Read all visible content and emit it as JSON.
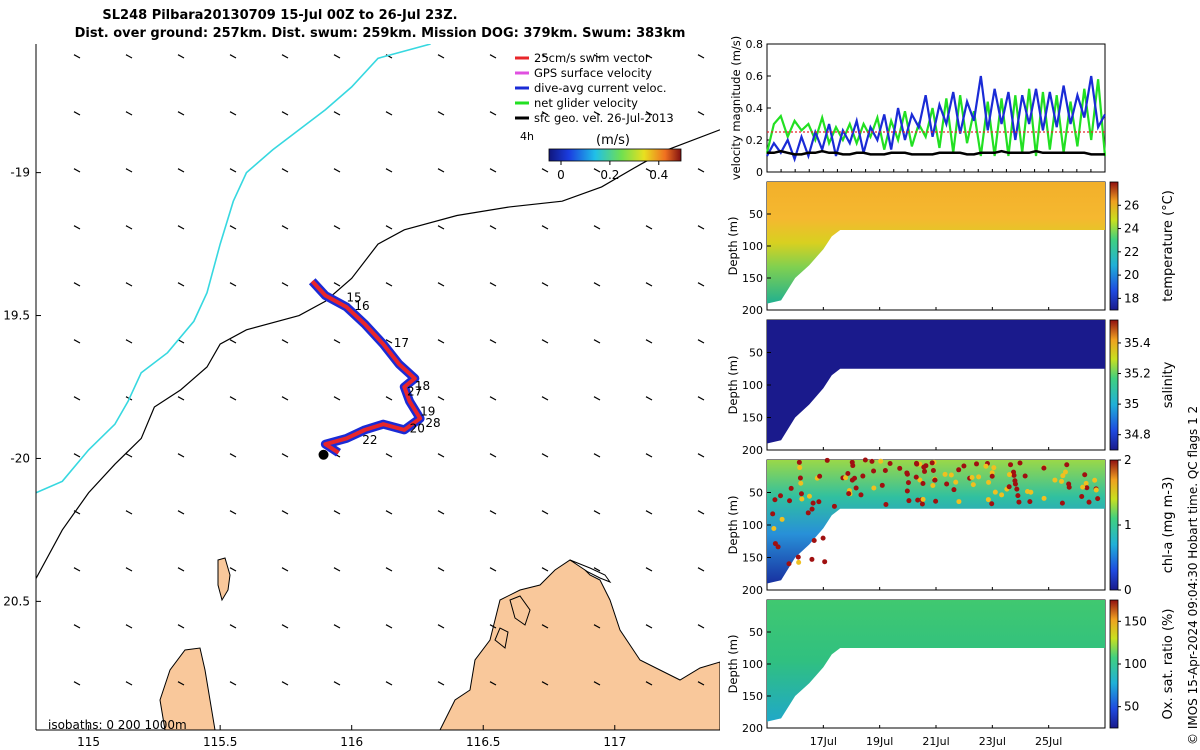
{
  "header": {
    "title_line1": "SL248 Pilbara20130709 15-Jul 00Z to 26-Jul 23Z.",
    "title_line2": "Dist. over ground: 257km. Dist. swum: 259km. Mission DOG: 379km. Swum: 383km"
  },
  "map": {
    "legend": [
      {
        "label": "25cm/s swim vector",
        "color": "#e8262a"
      },
      {
        "label": "GPS surface velocity",
        "color": "#e050e0"
      },
      {
        "label": "dive-avg current veloc.",
        "color": "#1a2bd6"
      },
      {
        "label": "net glider velocity",
        "color": "#22e022"
      },
      {
        "label": "sfc geo. vel. 26-Jul-2013",
        "color": "#000000"
      }
    ],
    "interval_label": "4h",
    "colorbar_unit": "(m/s)",
    "colorbar_ticks": [
      "0",
      "0.2",
      "0.4"
    ],
    "isobath_label": "isobaths: 0   200 1000m",
    "land_color": "#f9c89b",
    "day_labels": [
      {
        "text": "15",
        "lon": 115.98,
        "lat": -19.45
      },
      {
        "text": "16",
        "lon": 116.01,
        "lat": -19.48
      },
      {
        "text": "17",
        "lon": 116.16,
        "lat": -19.61
      },
      {
        "text": "18",
        "lon": 116.24,
        "lat": -19.76
      },
      {
        "text": "27",
        "lon": 116.21,
        "lat": -19.78
      },
      {
        "text": "19",
        "lon": 116.26,
        "lat": -19.85
      },
      {
        "text": "20",
        "lon": 116.22,
        "lat": -19.91
      },
      {
        "text": "28",
        "lon": 116.28,
        "lat": -19.89
      },
      {
        "text": "22",
        "lon": 116.04,
        "lat": -19.95
      }
    ]
  },
  "chart_data": [
    {
      "type": "line",
      "name": "map",
      "xlim": [
        114.8,
        117.4
      ],
      "ylim": [
        -20.95,
        -18.55
      ],
      "xticks": [
        115,
        115.5,
        116,
        116.5,
        117
      ],
      "xtick_labels": [
        "115",
        "115.5",
        "116",
        "116.5",
        "117"
      ],
      "yticks": [
        -19,
        -19.5,
        -20,
        -20.5
      ],
      "ytick_labels": [
        "-19",
        "19.5",
        "-20",
        "20.5"
      ],
      "isobath_0": [
        [
          114.8,
          -20.12
        ],
        [
          114.9,
          -20.08
        ],
        [
          115.0,
          -19.97
        ],
        [
          115.1,
          -19.88
        ],
        [
          115.15,
          -19.8
        ],
        [
          115.2,
          -19.7
        ],
        [
          115.3,
          -19.63
        ],
        [
          115.4,
          -19.52
        ],
        [
          115.45,
          -19.42
        ],
        [
          115.5,
          -19.25
        ],
        [
          115.55,
          -19.1
        ],
        [
          115.6,
          -19.0
        ],
        [
          115.7,
          -18.92
        ],
        [
          115.8,
          -18.85
        ],
        [
          115.9,
          -18.78
        ],
        [
          116.0,
          -18.7
        ],
        [
          116.1,
          -18.6
        ],
        [
          116.3,
          -18.55
        ]
      ],
      "isobath_200": [
        [
          114.8,
          -20.42
        ],
        [
          114.9,
          -20.25
        ],
        [
          115.0,
          -20.12
        ],
        [
          115.1,
          -20.02
        ],
        [
          115.2,
          -19.93
        ],
        [
          115.25,
          -19.82
        ],
        [
          115.35,
          -19.76
        ],
        [
          115.45,
          -19.68
        ],
        [
          115.5,
          -19.6
        ],
        [
          115.6,
          -19.55
        ],
        [
          115.8,
          -19.5
        ],
        [
          115.9,
          -19.45
        ],
        [
          116.0,
          -19.37
        ],
        [
          116.1,
          -19.25
        ],
        [
          116.2,
          -19.2
        ],
        [
          116.4,
          -19.15
        ],
        [
          116.6,
          -19.12
        ],
        [
          116.8,
          -19.1
        ],
        [
          116.95,
          -19.05
        ],
        [
          117.1,
          -18.97
        ],
        [
          117.2,
          -18.92
        ],
        [
          117.4,
          -18.85
        ]
      ],
      "track": [
        [
          115.85,
          -19.38
        ],
        [
          115.9,
          -19.43
        ],
        [
          115.98,
          -19.47
        ],
        [
          116.05,
          -19.53
        ],
        [
          116.12,
          -19.6
        ],
        [
          116.18,
          -19.67
        ],
        [
          116.24,
          -19.72
        ],
        [
          116.2,
          -19.75
        ],
        [
          116.22,
          -19.8
        ],
        [
          116.26,
          -19.86
        ],
        [
          116.2,
          -19.9
        ],
        [
          116.12,
          -19.88
        ],
        [
          116.05,
          -19.9
        ],
        [
          115.98,
          -19.93
        ],
        [
          115.9,
          -19.95
        ],
        [
          115.95,
          -19.98
        ]
      ],
      "geo_vectors_direction_deg": 225,
      "legend_entries": [
        "25cm/s swim vector",
        "GPS surface velocity",
        "dive-avg current veloc.",
        "net glider velocity",
        "sfc geo. vel. 26-Jul-2013"
      ]
    },
    {
      "type": "line",
      "name": "velocity",
      "ylabel": "velocity magnitude (m/s)",
      "ylim": [
        0,
        0.8
      ],
      "yticks": [
        0,
        0.2,
        0.4,
        0.6,
        0.8
      ],
      "xlim": [
        15.0,
        27.0
      ],
      "series": [
        {
          "name": "net glider velocity",
          "color": "#22e022",
          "values": [
            0.12,
            0.3,
            0.35,
            0.22,
            0.32,
            0.26,
            0.3,
            0.2,
            0.34,
            0.18,
            0.28,
            0.2,
            0.3,
            0.18,
            0.3,
            0.22,
            0.34,
            0.14,
            0.32,
            0.2,
            0.38,
            0.16,
            0.3,
            0.22,
            0.4,
            0.15,
            0.46,
            0.12,
            0.48,
            0.18,
            0.38,
            0.1,
            0.44,
            0.1,
            0.46,
            0.1,
            0.48,
            0.12,
            0.52,
            0.1,
            0.5,
            0.14,
            0.48,
            0.12,
            0.44,
            0.16,
            0.52,
            0.2,
            0.58,
            0.1
          ]
        },
        {
          "name": "dive-avg current veloc.",
          "color": "#1a2bd6",
          "values": [
            0.1,
            0.18,
            0.12,
            0.2,
            0.08,
            0.22,
            0.1,
            0.25,
            0.14,
            0.3,
            0.1,
            0.26,
            0.18,
            0.32,
            0.12,
            0.28,
            0.2,
            0.36,
            0.14,
            0.4,
            0.2,
            0.36,
            0.28,
            0.48,
            0.22,
            0.42,
            0.3,
            0.5,
            0.24,
            0.44,
            0.32,
            0.6,
            0.26,
            0.52,
            0.3,
            0.5,
            0.2,
            0.48,
            0.3,
            0.52,
            0.26,
            0.5,
            0.28,
            0.54,
            0.3,
            0.48,
            0.34,
            0.6,
            0.28,
            0.36
          ]
        },
        {
          "name": "sfc geo. vel.",
          "color": "#000000",
          "values": [
            0.12,
            0.12,
            0.13,
            0.12,
            0.11,
            0.11,
            0.12,
            0.12,
            0.13,
            0.12,
            0.12,
            0.11,
            0.11,
            0.12,
            0.12,
            0.11,
            0.11,
            0.11,
            0.12,
            0.12,
            0.12,
            0.11,
            0.11,
            0.11,
            0.11,
            0.12,
            0.12,
            0.12,
            0.12,
            0.11,
            0.11,
            0.12,
            0.12,
            0.12,
            0.13,
            0.12,
            0.12,
            0.12,
            0.12,
            0.13,
            0.12,
            0.12,
            0.12,
            0.12,
            0.12,
            0.12,
            0.12,
            0.11,
            0.11,
            0.11
          ]
        },
        {
          "name": "25cm/s swim vector",
          "color": "#e8262a",
          "values": [
            0.25,
            0.25,
            0.25,
            0.25,
            0.25,
            0.25,
            0.25,
            0.25,
            0.25,
            0.25,
            0.25,
            0.25,
            0.25,
            0.25,
            0.25,
            0.25,
            0.25,
            0.25,
            0.25,
            0.25,
            0.25,
            0.25,
            0.25,
            0.25,
            0.25,
            0.25,
            0.25,
            0.25,
            0.25,
            0.25,
            0.25,
            0.25,
            0.25,
            0.25,
            0.25,
            0.25,
            0.25,
            0.25,
            0.25,
            0.25,
            0.25,
            0.25,
            0.25,
            0.25,
            0.25,
            0.25,
            0.25,
            0.25,
            0.25,
            0.25
          ]
        }
      ]
    },
    {
      "type": "heatmap",
      "name": "temperature",
      "ylabel": "Depth (m)",
      "clabel": "temperature (°C)",
      "yticks": [
        0,
        50,
        100,
        150,
        200
      ],
      "ylim": [
        0,
        200
      ],
      "clim": [
        17,
        28
      ],
      "cticks": [
        18,
        20,
        22,
        24,
        26
      ],
      "depth_profile_max_m": [
        [
          15.0,
          190
        ],
        [
          15.5,
          185
        ],
        [
          16.0,
          150
        ],
        [
          16.5,
          130
        ],
        [
          17.0,
          105
        ],
        [
          17.3,
          85
        ],
        [
          17.6,
          75
        ],
        [
          27.0,
          75
        ]
      ]
    },
    {
      "type": "heatmap",
      "name": "salinity",
      "ylabel": "Depth (m)",
      "clabel": "salinity",
      "yticks": [
        0,
        50,
        100,
        150,
        200
      ],
      "ylim": [
        0,
        200
      ],
      "clim": [
        34.7,
        35.55
      ],
      "cticks": [
        34.8,
        35,
        35.2,
        35.4
      ]
    },
    {
      "type": "heatmap",
      "name": "chl-a",
      "ylabel": "Depth (m)",
      "clabel": "chl-a (mg m-3)",
      "yticks": [
        0,
        50,
        100,
        150,
        200
      ],
      "ylim": [
        0,
        200
      ],
      "clim": [
        0,
        2
      ],
      "cticks": [
        0,
        1,
        2
      ]
    },
    {
      "type": "heatmap",
      "name": "oxygen",
      "ylabel": "Depth (m)",
      "clabel": "Ox. sat. ratio (%)",
      "yticks": [
        0,
        50,
        100,
        150,
        200
      ],
      "ylim": [
        0,
        200
      ],
      "clim": [
        25,
        175
      ],
      "cticks": [
        50,
        100,
        150
      ],
      "xtick_labels": [
        "17Jul",
        "19Jul",
        "21Jul",
        "23Jul",
        "25Jul"
      ],
      "xtick_days": [
        17,
        19,
        21,
        23,
        25
      ],
      "xlim": [
        15.0,
        27.0
      ]
    }
  ],
  "footer": {
    "credit": "© IMOS 15-Apr-2024 09:04:30 Hobart time. QC flags 1  2"
  }
}
